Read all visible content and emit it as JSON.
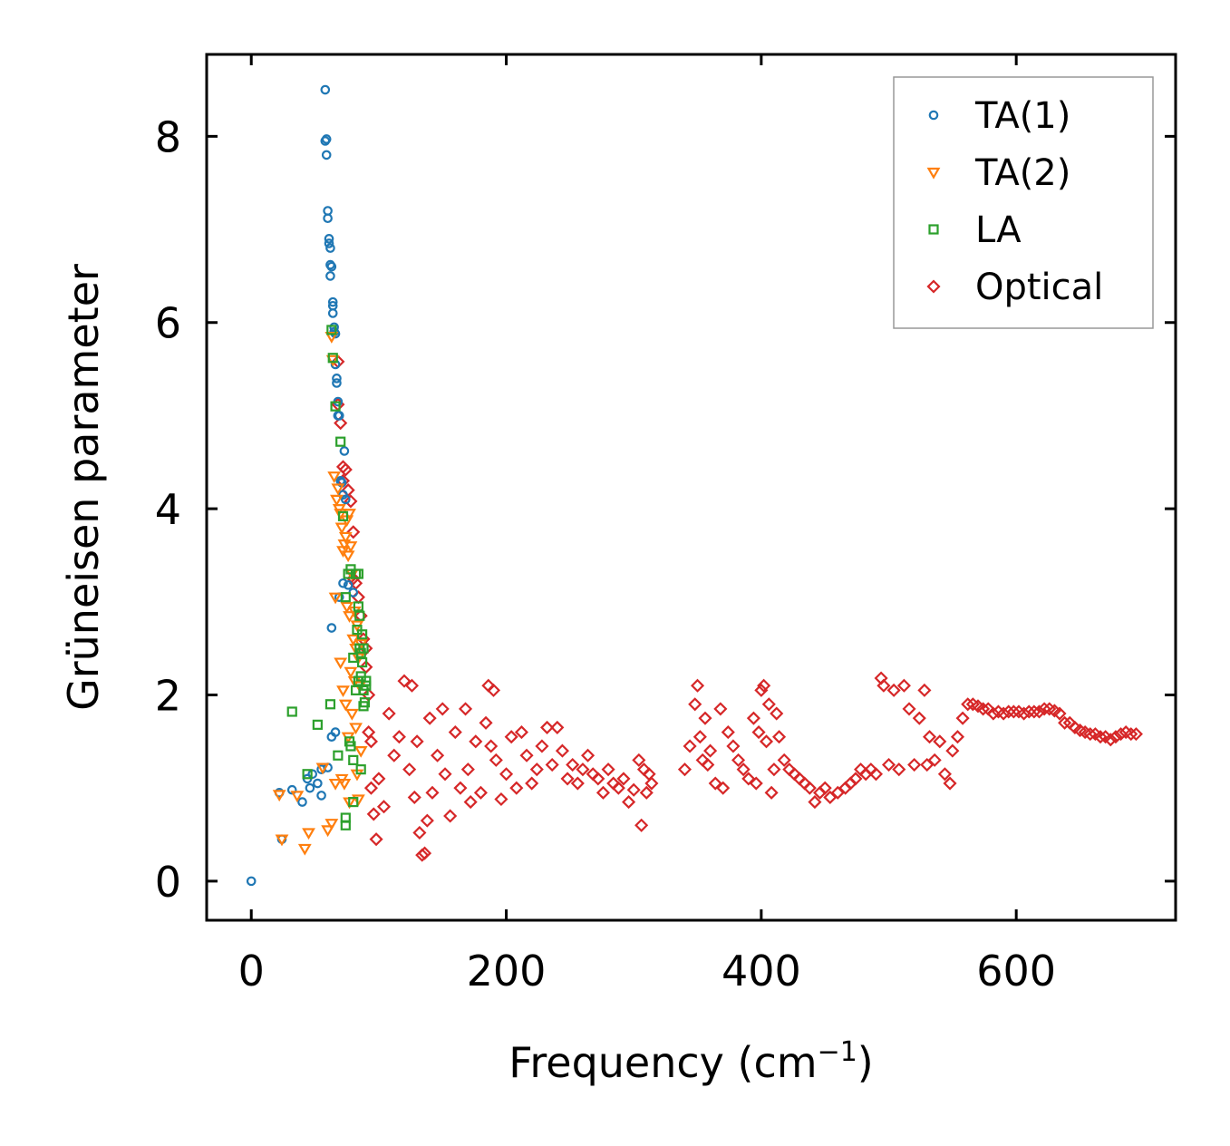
{
  "chart_data": {
    "type": "scatter",
    "title": "",
    "xlabel": "Frequency (cm",
    "xlabel_sup": "−1",
    "xlabel_end": ")",
    "ylabel": "Grüneisen parameter",
    "xlim": [
      -35,
      725
    ],
    "ylim": [
      -0.42,
      8.88
    ],
    "xticks": [
      0,
      200,
      400,
      600
    ],
    "yticks": [
      0,
      2,
      4,
      6,
      8
    ],
    "xtick_labels": [
      "0",
      "200",
      "400",
      "600"
    ],
    "ytick_labels": [
      "0",
      "2",
      "4",
      "6",
      "8"
    ],
    "grid": false,
    "legend": "top-right",
    "series": [
      {
        "name": "TA(1)",
        "marker": "circle",
        "color": "#1f77b4",
        "points": [
          [
            0,
            0
          ],
          [
            22,
            0.95
          ],
          [
            24,
            0.45
          ],
          [
            32,
            0.98
          ],
          [
            40,
            0.85
          ],
          [
            44,
            1.1
          ],
          [
            46,
            1.0
          ],
          [
            48,
            1.15
          ],
          [
            52,
            1.05
          ],
          [
            55,
            0.92
          ],
          [
            55,
            1.2
          ],
          [
            58,
            8.5
          ],
          [
            58,
            7.95
          ],
          [
            59,
            7.97
          ],
          [
            59,
            7.8
          ],
          [
            60,
            7.2
          ],
          [
            60,
            7.12
          ],
          [
            60,
            1.22
          ],
          [
            61,
            6.9
          ],
          [
            61,
            6.85
          ],
          [
            62,
            6.8
          ],
          [
            62,
            6.62
          ],
          [
            62,
            6.5
          ],
          [
            63,
            6.6
          ],
          [
            63,
            2.72
          ],
          [
            63,
            1.55
          ],
          [
            64,
            6.22
          ],
          [
            64,
            6.18
          ],
          [
            64,
            6.1
          ],
          [
            65,
            5.95
          ],
          [
            65,
            5.9
          ],
          [
            66,
            5.88
          ],
          [
            66,
            5.55
          ],
          [
            66,
            1.6
          ],
          [
            67,
            5.4
          ],
          [
            67,
            5.35
          ],
          [
            68,
            5.15
          ],
          [
            68,
            5.0
          ],
          [
            69,
            5.0
          ],
          [
            69,
            3.05
          ],
          [
            70,
            4.3
          ],
          [
            71,
            4.28
          ],
          [
            72,
            4.15
          ],
          [
            72,
            3.2
          ],
          [
            73,
            4.62
          ],
          [
            74,
            4.1
          ],
          [
            76,
            3.18
          ],
          [
            80,
            3.1
          ]
        ]
      },
      {
        "name": "TA(2)",
        "marker": "triangle-down",
        "color": "#ff7f0e",
        "points": [
          [
            22,
            0.93
          ],
          [
            24,
            0.45
          ],
          [
            36,
            0.92
          ],
          [
            42,
            0.35
          ],
          [
            45,
            0.52
          ],
          [
            56,
            1.22
          ],
          [
            60,
            0.55
          ],
          [
            63,
            5.85
          ],
          [
            63,
            0.62
          ],
          [
            64,
            5.6
          ],
          [
            65,
            4.35
          ],
          [
            66,
            3.05
          ],
          [
            66,
            1.05
          ],
          [
            67,
            4.1
          ],
          [
            68,
            4.22
          ],
          [
            69,
            4.0
          ],
          [
            70,
            3.95
          ],
          [
            70,
            2.35
          ],
          [
            71,
            3.8
          ],
          [
            71,
            1.1
          ],
          [
            72,
            3.55
          ],
          [
            72,
            2.05
          ],
          [
            73,
            3.62
          ],
          [
            73,
            1.05
          ],
          [
            74,
            3.7
          ],
          [
            74,
            1.9
          ],
          [
            75,
            3.88
          ],
          [
            75,
            2.95
          ],
          [
            76,
            3.5
          ],
          [
            76,
            1.55
          ],
          [
            77,
            3.95
          ],
          [
            77,
            2.85
          ],
          [
            77,
            0.85
          ],
          [
            78,
            3.6
          ],
          [
            78,
            2.25
          ],
          [
            79,
            3.3
          ],
          [
            79,
            1.8
          ],
          [
            80,
            2.6
          ],
          [
            81,
            2.9
          ],
          [
            81,
            2.15
          ],
          [
            82,
            2.5
          ],
          [
            82,
            1.65
          ],
          [
            83,
            2.75
          ],
          [
            83,
            1.15
          ],
          [
            84,
            2.4
          ],
          [
            84,
            0.88
          ],
          [
            85,
            2.1
          ],
          [
            86,
            2.55
          ],
          [
            86,
            1.4
          ]
        ]
      },
      {
        "name": "LA",
        "marker": "square",
        "color": "#2ca02c",
        "points": [
          [
            32,
            1.82
          ],
          [
            44,
            1.15
          ],
          [
            52,
            1.68
          ],
          [
            62,
            1.9
          ],
          [
            63,
            5.92
          ],
          [
            64,
            5.62
          ],
          [
            66,
            5.1
          ],
          [
            68,
            1.35
          ],
          [
            70,
            4.72
          ],
          [
            72,
            3.92
          ],
          [
            74,
            3.05
          ],
          [
            74,
            0.68
          ],
          [
            74,
            0.6
          ],
          [
            76,
            3.3
          ],
          [
            77,
            1.5
          ],
          [
            78,
            3.35
          ],
          [
            78,
            1.45
          ],
          [
            80,
            2.4
          ],
          [
            80,
            1.3
          ],
          [
            80,
            0.85
          ],
          [
            82,
            3.3
          ],
          [
            82,
            2.05
          ],
          [
            83,
            2.7
          ],
          [
            84,
            3.3
          ],
          [
            84,
            2.95
          ],
          [
            84,
            2.15
          ],
          [
            85,
            2.85
          ],
          [
            85,
            2.5
          ],
          [
            86,
            2.45
          ],
          [
            86,
            2.2
          ],
          [
            86,
            1.2
          ],
          [
            87,
            2.65
          ],
          [
            87,
            2.35
          ],
          [
            88,
            2.05
          ],
          [
            88,
            2.5
          ],
          [
            88,
            2.05
          ],
          [
            88,
            1.88
          ],
          [
            89,
            1.92
          ],
          [
            90,
            2.15
          ],
          [
            90,
            2.1
          ]
        ]
      },
      {
        "name": "Optical",
        "marker": "diamond",
        "color": "#d62728",
        "points": [
          [
            68,
            5.58
          ],
          [
            68,
            5.12
          ],
          [
            70,
            4.92
          ],
          [
            72,
            4.45
          ],
          [
            72,
            4.3
          ],
          [
            74,
            4.42
          ],
          [
            76,
            4.2
          ],
          [
            78,
            4.08
          ],
          [
            80,
            3.75
          ],
          [
            80,
            3.25
          ],
          [
            82,
            3.2
          ],
          [
            84,
            3.05
          ],
          [
            86,
            2.85
          ],
          [
            88,
            2.6
          ],
          [
            90,
            2.5
          ],
          [
            90,
            2.3
          ],
          [
            92,
            2.0
          ],
          [
            92,
            1.6
          ],
          [
            94,
            1.5
          ],
          [
            94,
            1.0
          ],
          [
            96,
            0.72
          ],
          [
            98,
            0.45
          ],
          [
            100,
            1.1
          ],
          [
            104,
            0.8
          ],
          [
            108,
            1.8
          ],
          [
            112,
            1.35
          ],
          [
            116,
            1.55
          ],
          [
            120,
            2.15
          ],
          [
            124,
            1.2
          ],
          [
            126,
            2.1
          ],
          [
            128,
            0.9
          ],
          [
            130,
            1.5
          ],
          [
            132,
            0.52
          ],
          [
            134,
            0.28
          ],
          [
            136,
            0.3
          ],
          [
            138,
            0.65
          ],
          [
            140,
            1.75
          ],
          [
            142,
            0.95
          ],
          [
            146,
            1.35
          ],
          [
            150,
            1.85
          ],
          [
            152,
            1.15
          ],
          [
            156,
            0.7
          ],
          [
            160,
            1.6
          ],
          [
            164,
            1.0
          ],
          [
            168,
            1.85
          ],
          [
            170,
            1.2
          ],
          [
            172,
            0.85
          ],
          [
            176,
            1.5
          ],
          [
            180,
            0.95
          ],
          [
            184,
            1.7
          ],
          [
            186,
            2.1
          ],
          [
            188,
            1.45
          ],
          [
            190,
            2.05
          ],
          [
            192,
            1.3
          ],
          [
            196,
            0.88
          ],
          [
            200,
            1.15
          ],
          [
            204,
            1.55
          ],
          [
            208,
            1.0
          ],
          [
            212,
            1.6
          ],
          [
            216,
            1.35
          ],
          [
            220,
            1.05
          ],
          [
            224,
            1.2
          ],
          [
            228,
            1.45
          ],
          [
            232,
            1.65
          ],
          [
            236,
            1.25
          ],
          [
            240,
            1.65
          ],
          [
            244,
            1.4
          ],
          [
            248,
            1.1
          ],
          [
            252,
            1.25
          ],
          [
            256,
            1.05
          ],
          [
            260,
            1.2
          ],
          [
            264,
            1.35
          ],
          [
            268,
            1.15
          ],
          [
            272,
            1.1
          ],
          [
            276,
            0.95
          ],
          [
            280,
            1.2
          ],
          [
            284,
            1.05
          ],
          [
            288,
            1.0
          ],
          [
            292,
            1.1
          ],
          [
            296,
            0.85
          ],
          [
            300,
            0.98
          ],
          [
            304,
            1.3
          ],
          [
            306,
            0.6
          ],
          [
            308,
            1.2
          ],
          [
            310,
            0.95
          ],
          [
            312,
            1.15
          ],
          [
            314,
            1.05
          ],
          [
            340,
            1.2
          ],
          [
            344,
            1.45
          ],
          [
            348,
            1.9
          ],
          [
            350,
            2.1
          ],
          [
            352,
            1.55
          ],
          [
            354,
            1.3
          ],
          [
            356,
            1.75
          ],
          [
            358,
            1.25
          ],
          [
            360,
            1.4
          ],
          [
            364,
            1.05
          ],
          [
            368,
            1.85
          ],
          [
            370,
            1.0
          ],
          [
            374,
            1.6
          ],
          [
            378,
            1.45
          ],
          [
            382,
            1.3
          ],
          [
            386,
            1.2
          ],
          [
            390,
            1.1
          ],
          [
            394,
            1.75
          ],
          [
            396,
            1.05
          ],
          [
            398,
            1.6
          ],
          [
            400,
            2.05
          ],
          [
            402,
            2.1
          ],
          [
            404,
            1.5
          ],
          [
            406,
            1.9
          ],
          [
            408,
            0.95
          ],
          [
            410,
            1.2
          ],
          [
            412,
            1.8
          ],
          [
            414,
            1.55
          ],
          [
            418,
            1.3
          ],
          [
            422,
            1.2
          ],
          [
            426,
            1.15
          ],
          [
            430,
            1.1
          ],
          [
            434,
            1.05
          ],
          [
            438,
            1.0
          ],
          [
            442,
            0.85
          ],
          [
            446,
            0.95
          ],
          [
            450,
            1.0
          ],
          [
            454,
            0.9
          ],
          [
            460,
            0.95
          ],
          [
            466,
            1.0
          ],
          [
            470,
            1.05
          ],
          [
            474,
            1.1
          ],
          [
            478,
            1.2
          ],
          [
            482,
            1.15
          ],
          [
            486,
            1.2
          ],
          [
            490,
            1.15
          ],
          [
            494,
            2.18
          ],
          [
            496,
            2.1
          ],
          [
            500,
            1.25
          ],
          [
            504,
            2.05
          ],
          [
            508,
            1.2
          ],
          [
            512,
            2.1
          ],
          [
            516,
            1.85
          ],
          [
            520,
            1.25
          ],
          [
            524,
            1.75
          ],
          [
            528,
            2.05
          ],
          [
            530,
            1.25
          ],
          [
            532,
            1.55
          ],
          [
            536,
            1.3
          ],
          [
            540,
            1.5
          ],
          [
            544,
            1.15
          ],
          [
            548,
            1.05
          ],
          [
            550,
            1.4
          ],
          [
            554,
            1.55
          ],
          [
            558,
            1.75
          ],
          [
            562,
            1.9
          ],
          [
            566,
            1.9
          ],
          [
            570,
            1.88
          ],
          [
            574,
            1.85
          ],
          [
            578,
            1.85
          ],
          [
            582,
            1.8
          ],
          [
            586,
            1.82
          ],
          [
            590,
            1.8
          ],
          [
            594,
            1.82
          ],
          [
            598,
            1.82
          ],
          [
            602,
            1.82
          ],
          [
            606,
            1.8
          ],
          [
            610,
            1.82
          ],
          [
            614,
            1.82
          ],
          [
            618,
            1.82
          ],
          [
            622,
            1.85
          ],
          [
            626,
            1.85
          ],
          [
            630,
            1.83
          ],
          [
            634,
            1.8
          ],
          [
            638,
            1.7
          ],
          [
            642,
            1.7
          ],
          [
            646,
            1.65
          ],
          [
            650,
            1.62
          ],
          [
            654,
            1.6
          ],
          [
            658,
            1.58
          ],
          [
            662,
            1.58
          ],
          [
            666,
            1.55
          ],
          [
            670,
            1.55
          ],
          [
            674,
            1.52
          ],
          [
            678,
            1.55
          ],
          [
            682,
            1.58
          ],
          [
            686,
            1.6
          ],
          [
            690,
            1.58
          ],
          [
            694,
            1.58
          ]
        ]
      }
    ]
  }
}
